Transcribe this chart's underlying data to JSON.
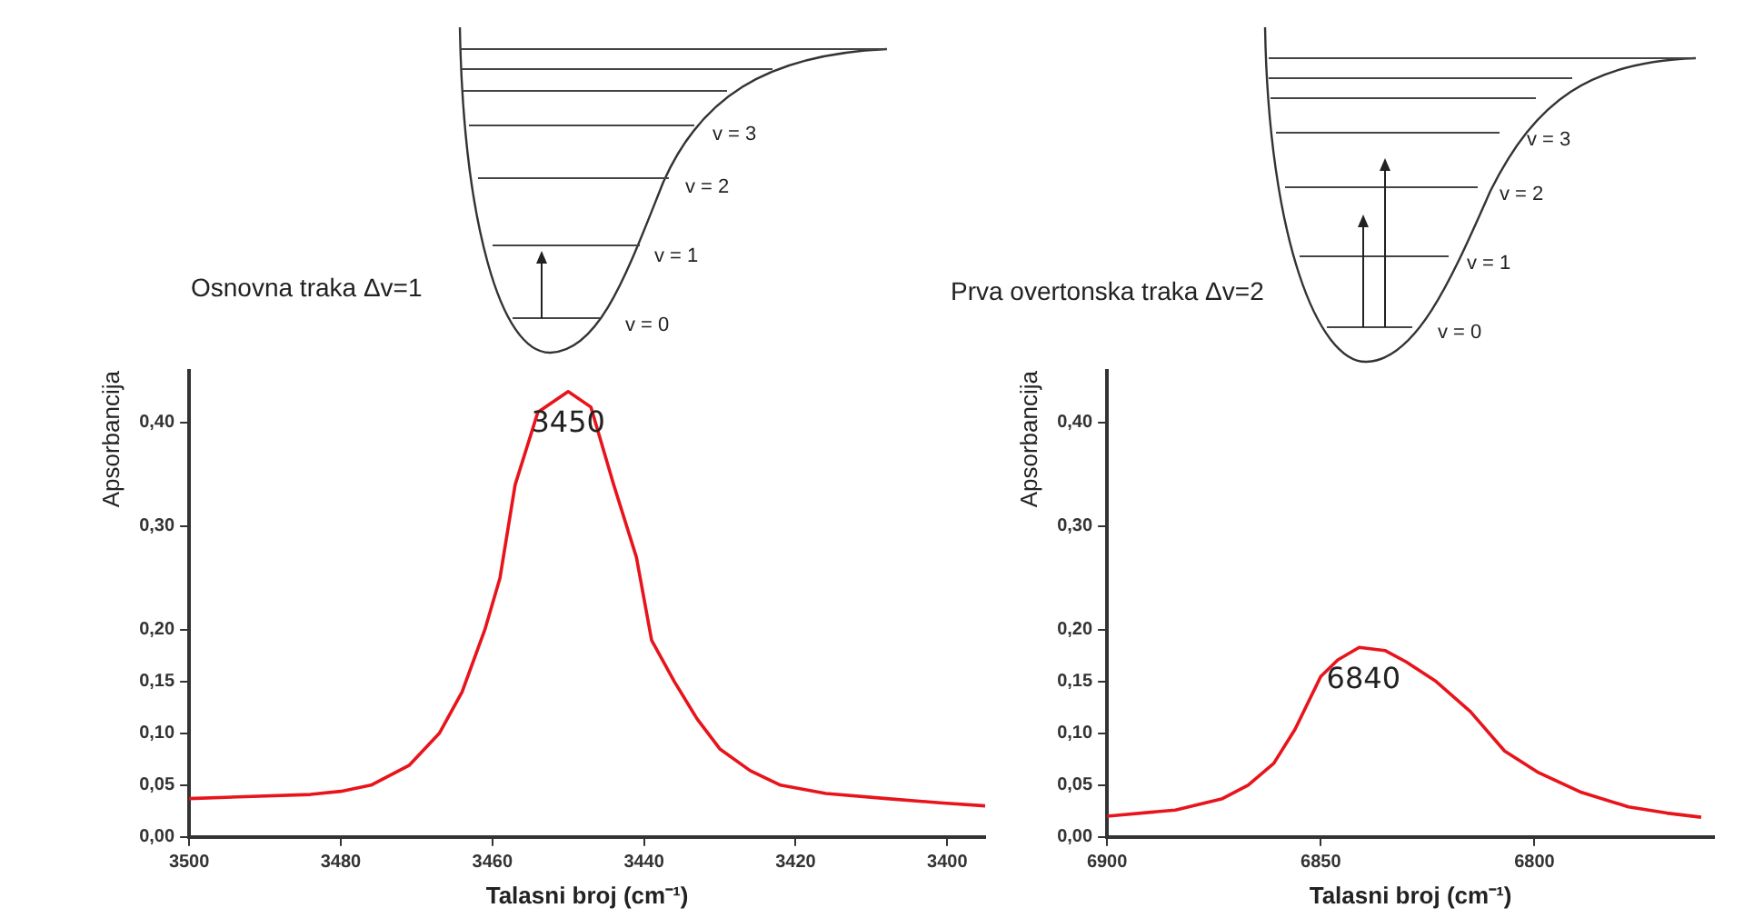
{
  "chart_data": [
    {
      "type": "line",
      "title": "Osnovna traka Δv=1",
      "xlabel": "Talasni broj (cm⁻¹)",
      "ylabel": "Apsorbancija",
      "x": [
        3500,
        3484,
        3480,
        3476,
        3471,
        3467,
        3464,
        3461,
        3459,
        3457,
        3454,
        3450,
        3447,
        3444,
        3441,
        3439,
        3436,
        3433,
        3430,
        3426,
        3422,
        3416,
        3408,
        3401,
        3395
      ],
      "series": [
        {
          "color": "#e8141c",
          "values": [
            0.037,
            0.041,
            0.044,
            0.05,
            0.069,
            0.1,
            0.14,
            0.2,
            0.25,
            0.34,
            0.41,
            0.43,
            0.415,
            0.34,
            0.27,
            0.19,
            0.15,
            0.114,
            0.085,
            0.064,
            0.05,
            0.042,
            0.037,
            0.033,
            0.03
          ]
        }
      ],
      "xlim": [
        3500,
        3395
      ],
      "xticks": [
        3500,
        3480,
        3460,
        3440,
        3420,
        3400
      ],
      "ylim": [
        0,
        0.45
      ],
      "yticks": [
        {
          "value": 0,
          "label": "0,00"
        },
        {
          "value": 0.05,
          "label": "0,05"
        },
        {
          "value": 0.1,
          "label": "0,10"
        },
        {
          "value": 0.15,
          "label": "0,15"
        },
        {
          "value": 0.2,
          "label": "0,20"
        },
        {
          "value": 0.3,
          "label": "0,30"
        },
        {
          "value": 0.4,
          "label": "0,40"
        }
      ],
      "grid": false,
      "legend": false,
      "marker": "none",
      "line_style": "solid",
      "annotations": [
        "v = 0",
        "v = 1",
        "v = 2",
        "v = 3",
        {
          "text": "3450",
          "x": 3450,
          "y": 0.43
        }
      ]
    },
    {
      "type": "line",
      "title": "Prva overtonska traka Δv=2",
      "xlabel": "Talasni broj (cm⁻¹)",
      "ylabel": "Apsorbancija",
      "x": [
        6900,
        6884,
        6873,
        6867,
        6861,
        6856,
        6850,
        6846,
        6841,
        6835,
        6830,
        6823,
        6815,
        6807,
        6799,
        6789,
        6778,
        6769,
        6761
      ],
      "series": [
        {
          "color": "#e8141c",
          "values": [
            0.02,
            0.026,
            0.037,
            0.05,
            0.071,
            0.104,
            0.155,
            0.171,
            0.183,
            0.18,
            0.169,
            0.15,
            0.121,
            0.083,
            0.062,
            0.043,
            0.029,
            0.023,
            0.019
          ]
        }
      ],
      "xlim": [
        6900,
        6758
      ],
      "xticks": [
        6900,
        6850,
        6800
      ],
      "ylim": [
        0,
        0.45
      ],
      "yticks": [
        {
          "value": 0,
          "label": "0,00"
        },
        {
          "value": 0.05,
          "label": "0,05"
        },
        {
          "value": 0.1,
          "label": "0,10"
        },
        {
          "value": 0.15,
          "label": "0,15"
        },
        {
          "value": 0.2,
          "label": "0,20"
        },
        {
          "value": 0.3,
          "label": "0,30"
        },
        {
          "value": 0.4,
          "label": "0,40"
        }
      ],
      "grid": false,
      "legend": false,
      "marker": "none",
      "line_style": "solid",
      "annotations": [
        "v = 0",
        "v = 1",
        "v = 2",
        "v = 3",
        {
          "text": "6840",
          "x": 6840,
          "y": 0.183
        }
      ]
    }
  ]
}
